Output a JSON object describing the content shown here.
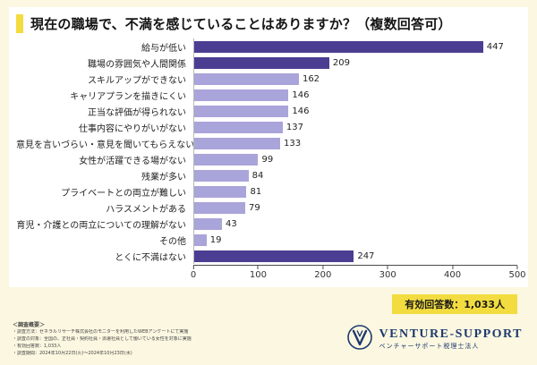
{
  "page": {
    "title": "現在の職場で、不満を感じていることはありますか？（複数回答可）"
  },
  "chart_data": {
    "type": "bar",
    "orientation": "horizontal",
    "title": "現在の職場で、不満を感じていることはありますか？（複数回答可）",
    "categories": [
      "給与が低い",
      "職場の雰囲気や人間関係",
      "スキルアップができない",
      "キャリアプランを描きにくい",
      "正当な評価が得られない",
      "仕事内容にやりがいがない",
      "意見を言いづらい・意見を聞いてもらえない",
      "女性が活躍できる場がない",
      "残業が多い",
      "プライベートとの両立が難しい",
      "ハラスメントがある",
      "育児・介護との両立についての理解がない",
      "その他",
      "とくに不満はない"
    ],
    "values": [
      447,
      209,
      162,
      146,
      146,
      137,
      133,
      99,
      84,
      81,
      79,
      43,
      19,
      247
    ],
    "dark_bars": [
      0,
      1,
      13
    ],
    "bar_color_dark": "#4b3e92",
    "bar_color_light": "#a9a4d9",
    "xlim": [
      0,
      500
    ],
    "x_ticks": [
      0,
      100,
      200,
      300,
      400,
      500
    ],
    "grid": false,
    "value_labels": true,
    "legend": null
  },
  "badge": {
    "label": "有効回答数：1,033人"
  },
  "footnote": {
    "heading": "＜調査概要＞",
    "lines": [
      "・調査方法：ゼネラルリサーチ株式会社のモニターを利用したWEBアンケートにて実施",
      "・調査の対象：全国の、正社員・契約社員・派遣社員として働いている女性を対象に実施",
      "・有効回答数：1,033人",
      "・調査期間：2024年10月22日(火)～2024年10月23日(水)"
    ]
  },
  "logo": {
    "name": "VENTURE-SUPPORT",
    "subtitle": "ベンチャーサポート税理士法人"
  },
  "colors": {
    "background": "#fbf7e1",
    "panel": "#ffffff",
    "accent_yellow": "#f3dc3f",
    "bar_dark": "#4b3e92",
    "bar_light": "#a9a4d9",
    "logo_navy": "#1e3a6e"
  }
}
